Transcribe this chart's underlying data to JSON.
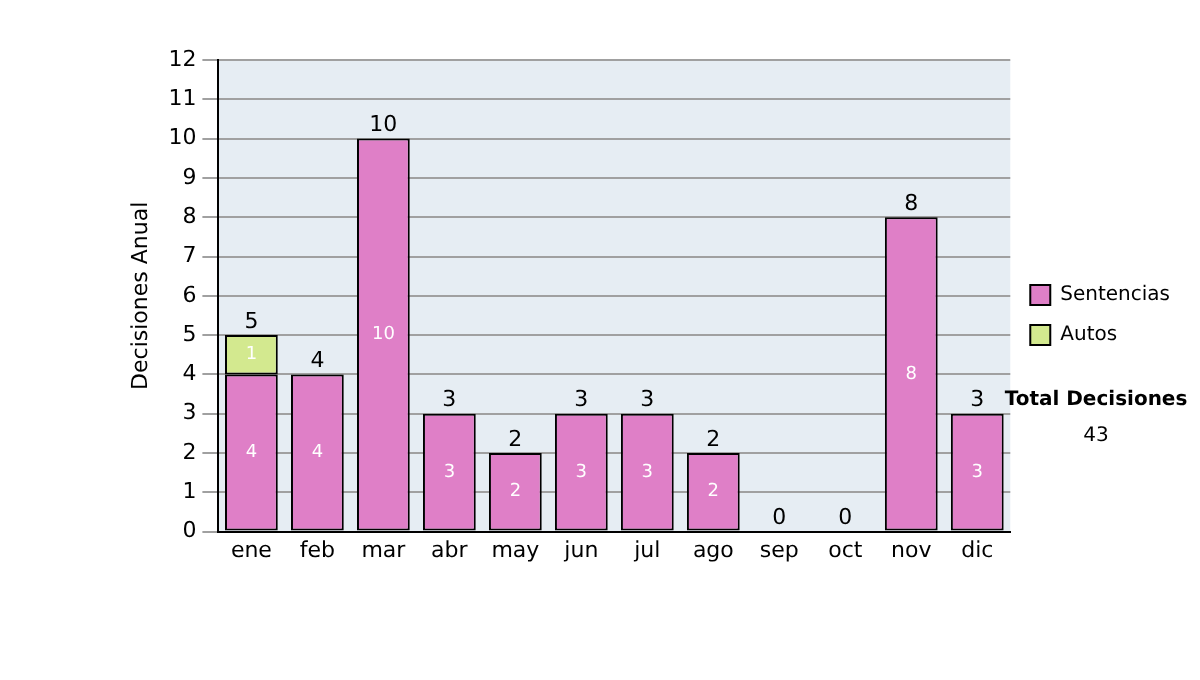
{
  "chart_data": {
    "type": "bar",
    "stacked": true,
    "ylabel": "Decisiones Anual",
    "categories": [
      "ene",
      "feb",
      "mar",
      "abr",
      "may",
      "jun",
      "jul",
      "ago",
      "sep",
      "oct",
      "nov",
      "dic"
    ],
    "series": [
      {
        "name": "Sentencias",
        "color": "#df7fc7",
        "values": [
          4,
          4,
          10,
          3,
          2,
          3,
          3,
          2,
          0,
          0,
          8,
          3
        ],
        "value_labels": [
          "4",
          "4",
          "10",
          "3",
          "2",
          "3",
          "3",
          "2",
          null,
          null,
          "8",
          "3"
        ]
      },
      {
        "name": "Autos",
        "color": "#d3e98f",
        "values": [
          1,
          0,
          0,
          0,
          0,
          0,
          0,
          0,
          0,
          0,
          0,
          0
        ],
        "value_labels": [
          "1",
          null,
          null,
          null,
          null,
          null,
          null,
          null,
          null,
          null,
          null,
          null
        ]
      }
    ],
    "totals": [
      "5",
      "4",
      "10",
      "3",
      "2",
      "3",
      "3",
      "2",
      "0",
      "0",
      "8",
      "3"
    ],
    "ylim": [
      0,
      12
    ],
    "yticks": [
      0,
      1,
      2,
      3,
      4,
      5,
      6,
      7,
      8,
      9,
      10,
      11,
      12
    ],
    "grid": "y",
    "legend": "right",
    "annotations": [
      "Total Decisiones",
      "43"
    ]
  }
}
